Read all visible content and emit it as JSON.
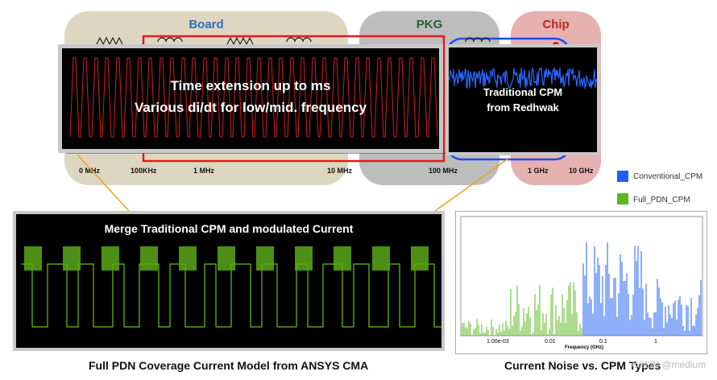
{
  "regions": {
    "board": {
      "label": "Board",
      "color": "#2f6db5",
      "bg": "#ddd7c2"
    },
    "pkg": {
      "label": "PKG",
      "color": "#2e5e33",
      "bg": "#bdbdbd"
    },
    "chip": {
      "label": "Chip",
      "color": "#c0271f",
      "bg": "#e6b1b1"
    }
  },
  "frequency_axis": [
    "0 MHz",
    "100KHz",
    "1 MHz",
    "10 MHz",
    "100 MHz",
    "1 GHz",
    "10 GHz"
  ],
  "top_panel": {
    "line1": "Time extension up to ms",
    "line2": "Various di/dt for low/mid. frequency"
  },
  "cpm_panel": {
    "line1": "Traditional CPM",
    "line2": "from Redhwak"
  },
  "merge_panel": {
    "title": "Merge Traditional CPM and modulated Current",
    "caption": "Full PDN Coverage Current Model from ANSYS CMA"
  },
  "spectrum_panel": {
    "xlabel": "Frequency (GHz)",
    "ticks": [
      "1.00e-03",
      "0.01",
      "0.1",
      "1"
    ],
    "caption": "Current Noise vs. CPM Types",
    "legend": [
      {
        "label": "Conventional_CPM",
        "color": "#1f5ff5"
      },
      {
        "label": "Full_PDN_CPM",
        "color": "#5cb81f"
      }
    ]
  },
  "watermark": "CSDN @medium"
}
